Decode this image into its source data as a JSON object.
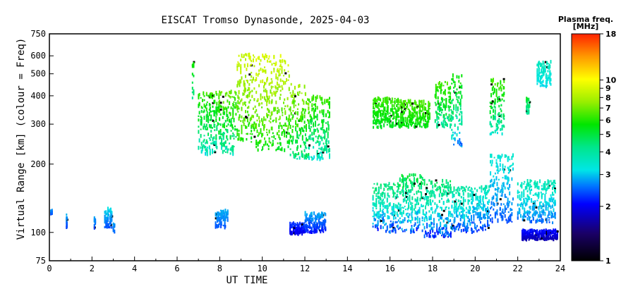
{
  "chart_data": {
    "type": "scatter",
    "title": "EISCAT Tromso Dynasonde, 2025-04-03",
    "xlabel": "UT TIME",
    "ylabel": "Virtual Range [km] (colour = Freq)",
    "xlim": [
      0,
      24
    ],
    "ylim": [
      75,
      750
    ],
    "yscale": "log",
    "xticks": [
      0,
      2,
      4,
      6,
      8,
      10,
      12,
      14,
      16,
      18,
      20,
      22,
      24
    ],
    "yticks": [
      75,
      100,
      200,
      300,
      400,
      500,
      600,
      750
    ],
    "colorbar": {
      "title": "Plasma freq.",
      "unit": "[MHz]",
      "scale": "log",
      "range": [
        1,
        18
      ],
      "ticks": [
        1,
        2,
        3,
        4,
        5,
        6,
        7,
        8,
        9,
        10,
        18
      ]
    },
    "series": [
      {
        "type": "clusters",
        "clusters": [
          {
            "x": [
              0.05,
              0.15
            ],
            "y": [
              120,
              125
            ],
            "f": [
              2.2,
              2.8
            ]
          },
          {
            "x": [
              0.8,
              0.85
            ],
            "y": [
              105,
              120
            ],
            "f": [
              2.2,
              3.0
            ]
          },
          {
            "x": [
              2.1,
              2.2
            ],
            "y": [
              103,
              118
            ],
            "f": [
              2.2,
              3.0
            ]
          },
          {
            "x": [
              2.6,
              2.95
            ],
            "y": [
              105,
              128
            ],
            "f": [
              2.3,
              3.3
            ]
          },
          {
            "x": [
              3.0,
              3.1
            ],
            "y": [
              98,
              110
            ],
            "f": [
              2.2,
              3.0
            ]
          },
          {
            "x": [
              6.7,
              6.8
            ],
            "y": [
              390,
              560
            ],
            "f": [
              4.0,
              6.0
            ]
          },
          {
            "x": [
              7.0,
              7.9
            ],
            "y": [
              220,
              420
            ],
            "f": [
              3.0,
              7.0
            ]
          },
          {
            "x": [
              7.9,
              8.8
            ],
            "y": [
              220,
              420
            ],
            "f": [
              3.2,
              7.5
            ]
          },
          {
            "x": [
              7.8,
              8.4
            ],
            "y": [
              105,
              125
            ],
            "f": [
              2.3,
              3.0
            ]
          },
          {
            "x": [
              8.8,
              9.7
            ],
            "y": [
              250,
              620
            ],
            "f": [
              5.0,
              9.5
            ]
          },
          {
            "x": [
              9.7,
              10.5
            ],
            "y": [
              230,
              610
            ],
            "f": [
              5.0,
              9.8
            ]
          },
          {
            "x": [
              10.5,
              11.3
            ],
            "y": [
              230,
              600
            ],
            "f": [
              4.8,
              9.5
            ]
          },
          {
            "x": [
              11.3,
              12.2
            ],
            "y": [
              210,
              450
            ],
            "f": [
              3.5,
              8.5
            ]
          },
          {
            "x": [
              12.2,
              13.2
            ],
            "y": [
              210,
              400
            ],
            "f": [
              3.0,
              7.0
            ]
          },
          {
            "x": [
              11.3,
              12.0
            ],
            "y": [
              98,
              110
            ],
            "f": [
              1.8,
              2.4
            ]
          },
          {
            "x": [
              12.0,
              13.0
            ],
            "y": [
              100,
              122
            ],
            "f": [
              2.0,
              3.0
            ]
          },
          {
            "x": [
              15.2,
              16.4
            ],
            "y": [
              290,
              390
            ],
            "f": [
              5.0,
              6.5
            ]
          },
          {
            "x": [
              16.4,
              17.9
            ],
            "y": [
              290,
              380
            ],
            "f": [
              5.2,
              6.8
            ]
          },
          {
            "x": [
              18.1,
              18.9
            ],
            "y": [
              290,
              460
            ],
            "f": [
              3.5,
              7.0
            ]
          },
          {
            "x": [
              18.9,
              19.4
            ],
            "y": [
              240,
              500
            ],
            "f": [
              2.3,
              6.5
            ]
          },
          {
            "x": [
              20.7,
              21.4
            ],
            "y": [
              270,
              470
            ],
            "f": [
              3.0,
              7.0
            ]
          },
          {
            "x": [
              22.4,
              22.6
            ],
            "y": [
              330,
              390
            ],
            "f": [
              3.5,
              5.5
            ]
          },
          {
            "x": [
              22.9,
              23.6
            ],
            "y": [
              440,
              570
            ],
            "f": [
              3.0,
              3.8
            ]
          },
          {
            "x": [
              15.2,
              16.4
            ],
            "y": [
              100,
              165
            ],
            "f": [
              1.9,
              5.0
            ]
          },
          {
            "x": [
              16.4,
              17.6
            ],
            "y": [
              100,
              180
            ],
            "f": [
              1.9,
              5.5
            ]
          },
          {
            "x": [
              17.6,
              18.9
            ],
            "y": [
              95,
              170
            ],
            "f": [
              1.8,
              5.0
            ]
          },
          {
            "x": [
              18.9,
              19.8
            ],
            "y": [
              100,
              160
            ],
            "f": [
              2.0,
              4.5
            ]
          },
          {
            "x": [
              19.8,
              20.7
            ],
            "y": [
              100,
              160
            ],
            "f": [
              2.0,
              4.0
            ]
          },
          {
            "x": [
              20.7,
              21.8
            ],
            "y": [
              110,
              220
            ],
            "f": [
              2.2,
              3.6
            ]
          },
          {
            "x": [
              22.0,
              23.8
            ],
            "y": [
              110,
              170
            ],
            "f": [
              2.3,
              4.0
            ]
          },
          {
            "x": [
              22.2,
              23.9
            ],
            "y": [
              93,
              102
            ],
            "f": [
              1.6,
              2.2
            ]
          }
        ]
      }
    ]
  }
}
